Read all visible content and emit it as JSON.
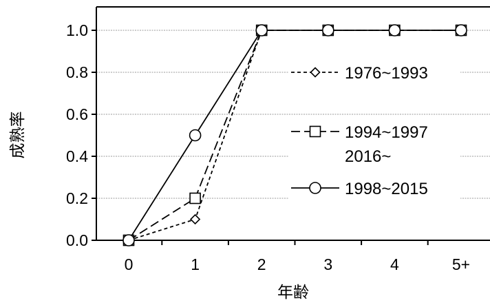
{
  "chart_data": {
    "type": "line",
    "title": "",
    "xlabel": "年齢",
    "ylabel": "成熟率",
    "categories": [
      "0",
      "1",
      "2",
      "3",
      "4",
      "5+"
    ],
    "ylim": [
      0,
      1.0
    ],
    "yticks": [
      "0.0",
      "0.2",
      "0.4",
      "0.6",
      "0.8",
      "1.0"
    ],
    "grid": true,
    "legend_position": "right",
    "series": [
      {
        "name": "1976~1993",
        "values": [
          0,
          0.1,
          1.0,
          1.0,
          1.0,
          1.0
        ],
        "marker": "diamond",
        "line": "dotted"
      },
      {
        "name": "1994~1997",
        "name_line2": "2016~",
        "values": [
          0,
          0.2,
          1.0,
          1.0,
          1.0,
          1.0
        ],
        "marker": "square",
        "line": "dashed"
      },
      {
        "name": "1998~2015",
        "values": [
          0,
          0.5,
          1.0,
          1.0,
          1.0,
          1.0
        ],
        "marker": "circle",
        "line": "solid"
      }
    ]
  }
}
